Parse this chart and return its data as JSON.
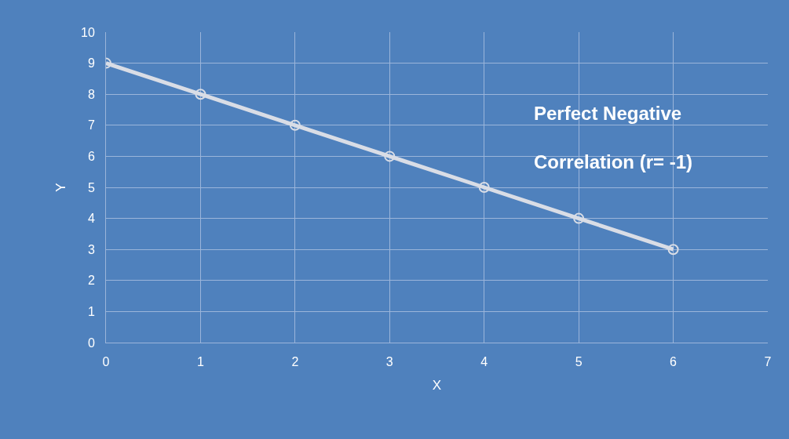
{
  "chart_data": {
    "type": "line",
    "x": [
      0,
      1,
      2,
      3,
      4,
      5,
      6
    ],
    "series": [
      {
        "color": "#d9dde6",
        "values": [
          9,
          8,
          7,
          6,
          5,
          4,
          3
        ]
      }
    ],
    "xlabel": "X",
    "ylabel": "Y",
    "xlim": [
      0,
      7
    ],
    "xticks": [
      0,
      1,
      2,
      3,
      4,
      5,
      6,
      7
    ],
    "ylim": [
      0,
      10
    ],
    "yticks": [
      0,
      1,
      2,
      3,
      4,
      5,
      6,
      7,
      8,
      9,
      10
    ],
    "grid": true,
    "marker": "circle",
    "line_style": "solid",
    "annotations": [
      "Perfect Negative Correlation (r= -1)"
    ]
  }
}
